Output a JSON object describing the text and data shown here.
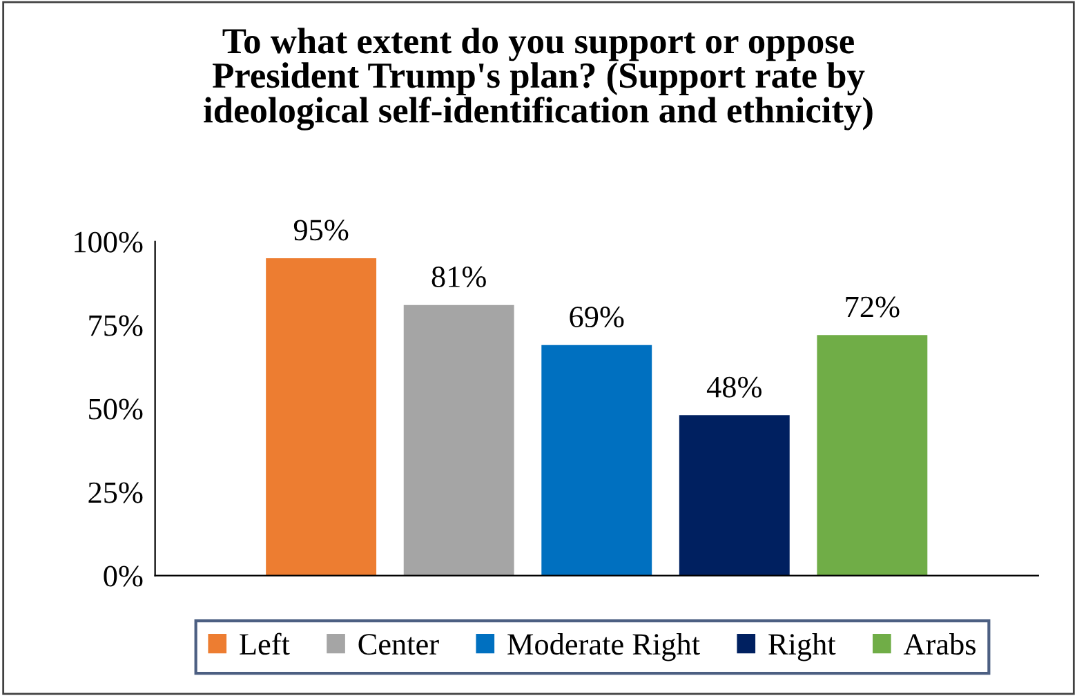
{
  "chart_data": {
    "type": "bar",
    "title": "To what extent do you support or oppose\nPresident Trump's plan? (Support rate by\nideological self-identification and ethnicity)",
    "categories": [
      null
    ],
    "series": [
      {
        "name": "Left",
        "color": "#ed7d31",
        "values": [
          95
        ],
        "value_labels": [
          "95%"
        ]
      },
      {
        "name": "Center",
        "color": "#a5a5a5",
        "values": [
          81
        ],
        "value_labels": [
          "81%"
        ]
      },
      {
        "name": "Moderate Right",
        "color": "#0070c0",
        "values": [
          69
        ],
        "value_labels": [
          "69%"
        ]
      },
      {
        "name": "Right",
        "color": "#002060",
        "values": [
          48
        ],
        "value_labels": [
          "48%"
        ]
      },
      {
        "name": "Arabs",
        "color": "#70ad47",
        "values": [
          72
        ],
        "value_labels": [
          "72%"
        ]
      }
    ],
    "ylim": [
      0,
      100
    ],
    "yticks": [
      {
        "value": 0,
        "label": "0%"
      },
      {
        "value": 25,
        "label": "25%"
      },
      {
        "value": 50,
        "label": "50%"
      },
      {
        "value": 75,
        "label": "75%"
      },
      {
        "value": 100,
        "label": "100%"
      }
    ],
    "grid": false,
    "legend": "bottom"
  }
}
